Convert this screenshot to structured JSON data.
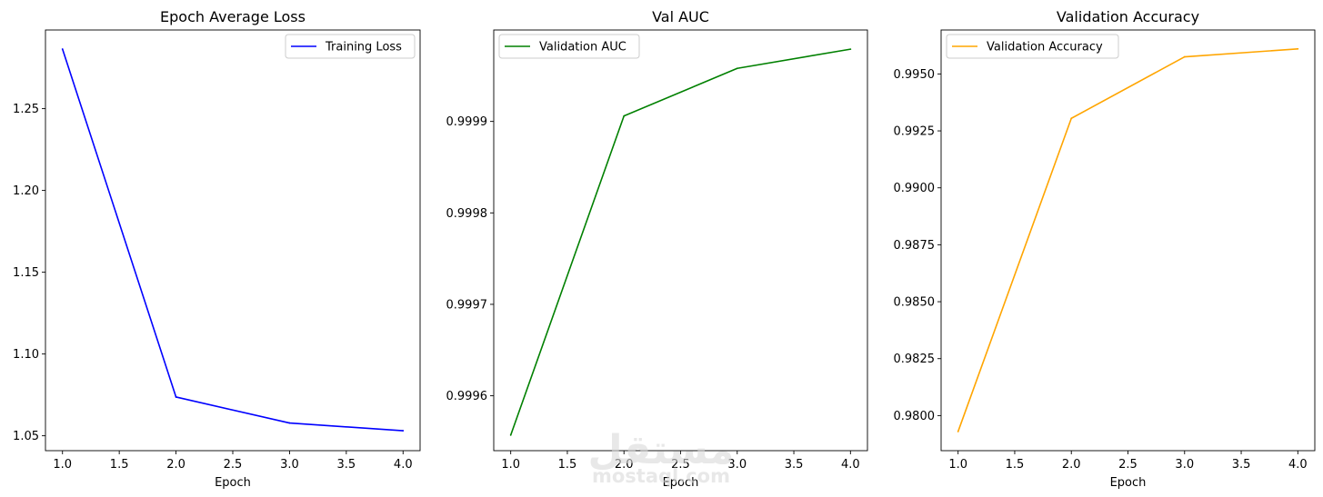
{
  "watermark": {
    "script": "مستقل",
    "latin": "mostaql.com"
  },
  "chart_data": [
    {
      "type": "line",
      "title": "Epoch Average Loss",
      "xlabel": "Epoch",
      "ylabel": "",
      "x": [
        1.0,
        2.0,
        3.0,
        4.0
      ],
      "xlim": [
        0.85,
        4.15
      ],
      "ylim": [
        1.0409,
        1.2981
      ],
      "xticks": [
        1.0,
        1.5,
        2.0,
        2.5,
        3.0,
        3.5,
        4.0
      ],
      "xtick_labels": [
        "1.0",
        "1.5",
        "2.0",
        "2.5",
        "3.0",
        "3.5",
        "4.0"
      ],
      "yticks": [
        1.05,
        1.1,
        1.15,
        1.2,
        1.25
      ],
      "ytick_labels": [
        "1.05",
        "1.10",
        "1.15",
        "1.20",
        "1.25"
      ],
      "legend_position": "top-right",
      "grid": false,
      "series": [
        {
          "name": "Training Loss",
          "color": "#0000ff",
          "values": [
            1.2864,
            1.0737,
            1.0578,
            1.0531
          ]
        }
      ]
    },
    {
      "type": "line",
      "title": "Val AUC",
      "xlabel": "Epoch",
      "ylabel": "",
      "x": [
        1.0,
        2.0,
        3.0,
        4.0
      ],
      "xlim": [
        0.85,
        4.15
      ],
      "ylim": [
        0.99954,
        1.0
      ],
      "xticks": [
        1.0,
        1.5,
        2.0,
        2.5,
        3.0,
        3.5,
        4.0
      ],
      "xtick_labels": [
        "1.0",
        "1.5",
        "2.0",
        "2.5",
        "3.0",
        "3.5",
        "4.0"
      ],
      "yticks": [
        0.9996,
        0.9997,
        0.9998,
        0.9999
      ],
      "ytick_labels": [
        "0.9996",
        "0.9997",
        "0.9998",
        "0.9999"
      ],
      "legend_position": "top-left",
      "grid": false,
      "series": [
        {
          "name": "Validation AUC",
          "color": "#008000",
          "values": [
            0.999557,
            0.999906,
            0.999958,
            0.999979
          ]
        }
      ]
    },
    {
      "type": "line",
      "title": "Validation Accuracy",
      "xlabel": "Epoch",
      "ylabel": "",
      "x": [
        1.0,
        2.0,
        3.0,
        4.0
      ],
      "xlim": [
        0.85,
        4.15
      ],
      "ylim": [
        0.97846,
        0.99693
      ],
      "xticks": [
        1.0,
        1.5,
        2.0,
        2.5,
        3.0,
        3.5,
        4.0
      ],
      "xtick_labels": [
        "1.0",
        "1.5",
        "2.0",
        "2.5",
        "3.0",
        "3.5",
        "4.0"
      ],
      "yticks": [
        0.98,
        0.9825,
        0.985,
        0.9875,
        0.99,
        0.9925,
        0.995
      ],
      "ytick_labels": [
        "0.9800",
        "0.9825",
        "0.9850",
        "0.9875",
        "0.9900",
        "0.9925",
        "0.9950"
      ],
      "legend_position": "top-left",
      "grid": false,
      "series": [
        {
          "name": "Validation Accuracy",
          "color": "#ffa500",
          "values": [
            0.9793,
            0.99305,
            0.99575,
            0.9961
          ]
        }
      ]
    }
  ]
}
